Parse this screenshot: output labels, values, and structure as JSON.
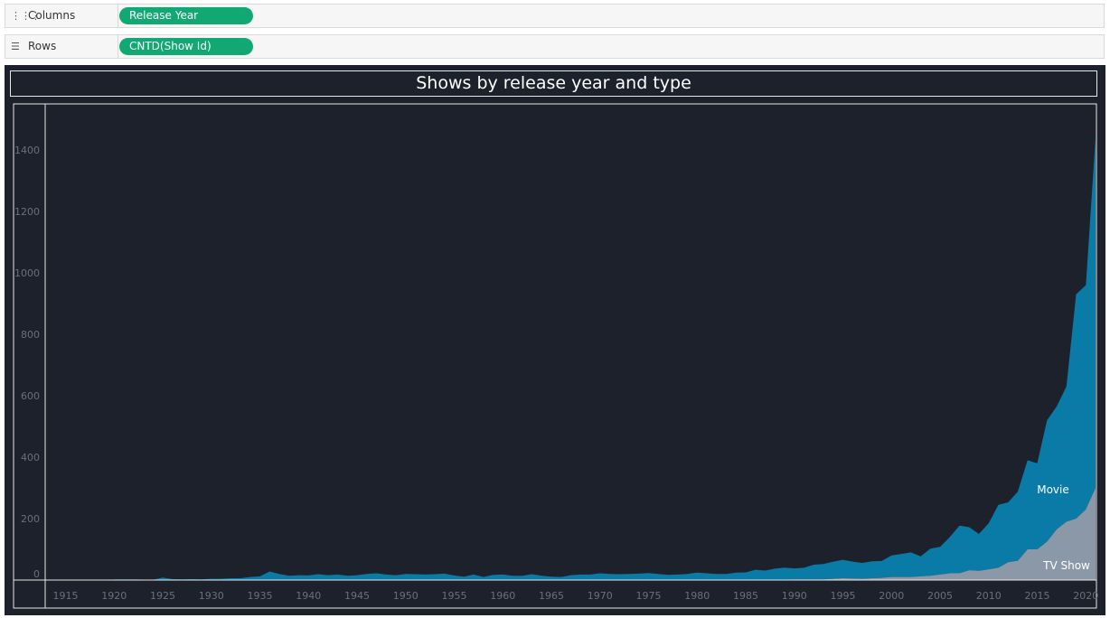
{
  "shelves": {
    "columns": {
      "label": "Columns",
      "pill": "Release Year",
      "icon": "columns-icon"
    },
    "rows": {
      "label": "Rows",
      "pill": "CNTD(Show Id)",
      "icon": "rows-icon"
    }
  },
  "colors": {
    "pill": "#12a874",
    "background": "#1c212b",
    "movie": "#0a7aa6",
    "tv_show": "#8a98a8",
    "tick_text": "#6b7078"
  },
  "chart_data": {
    "type": "area",
    "stacked": true,
    "title": "Shows by release year and type",
    "xlabel": "",
    "ylabel": "",
    "xlim": [
      1913,
      2021
    ],
    "ylim": [
      0,
      1500
    ],
    "x_ticks": [
      1915,
      1920,
      1925,
      1930,
      1935,
      1940,
      1945,
      1950,
      1955,
      1960,
      1965,
      1970,
      1975,
      1980,
      1985,
      1990,
      1995,
      2000,
      2005,
      2010,
      2015,
      2020
    ],
    "y_ticks": [
      0,
      200,
      400,
      600,
      800,
      1000,
      1200,
      1400
    ],
    "grid": false,
    "series": [
      {
        "name": "Movie",
        "points": [
          [
            1920,
            2
          ],
          [
            1922,
            2
          ],
          [
            1924,
            1
          ],
          [
            1925,
            8
          ],
          [
            1926,
            3
          ],
          [
            1927,
            2
          ],
          [
            1928,
            3
          ],
          [
            1929,
            2
          ],
          [
            1930,
            4
          ],
          [
            1931,
            4
          ],
          [
            1932,
            6
          ],
          [
            1933,
            6
          ],
          [
            1934,
            10
          ],
          [
            1935,
            12
          ],
          [
            1936,
            28
          ],
          [
            1937,
            20
          ],
          [
            1938,
            14
          ],
          [
            1939,
            16
          ],
          [
            1940,
            15
          ],
          [
            1941,
            19
          ],
          [
            1942,
            16
          ],
          [
            1943,
            18
          ],
          [
            1944,
            14
          ],
          [
            1945,
            16
          ],
          [
            1946,
            20
          ],
          [
            1947,
            22
          ],
          [
            1948,
            18
          ],
          [
            1949,
            16
          ],
          [
            1950,
            20
          ],
          [
            1951,
            19
          ],
          [
            1952,
            18
          ],
          [
            1953,
            19
          ],
          [
            1954,
            21
          ],
          [
            1955,
            15
          ],
          [
            1956,
            11
          ],
          [
            1957,
            18
          ],
          [
            1958,
            10
          ],
          [
            1959,
            17
          ],
          [
            1960,
            18
          ],
          [
            1961,
            14
          ],
          [
            1962,
            14
          ],
          [
            1963,
            19
          ],
          [
            1964,
            14
          ],
          [
            1965,
            11
          ],
          [
            1966,
            10
          ],
          [
            1967,
            16
          ],
          [
            1968,
            18
          ],
          [
            1969,
            18
          ],
          [
            1970,
            22
          ],
          [
            1971,
            20
          ],
          [
            1972,
            19
          ],
          [
            1973,
            20
          ],
          [
            1974,
            21
          ],
          [
            1975,
            23
          ],
          [
            1976,
            20
          ],
          [
            1977,
            17
          ],
          [
            1978,
            18
          ],
          [
            1979,
            20
          ],
          [
            1980,
            24
          ],
          [
            1981,
            22
          ],
          [
            1982,
            20
          ],
          [
            1983,
            20
          ],
          [
            1984,
            24
          ],
          [
            1985,
            25
          ],
          [
            1986,
            33
          ],
          [
            1987,
            30
          ],
          [
            1988,
            36
          ],
          [
            1989,
            39
          ],
          [
            1990,
            36
          ],
          [
            1991,
            38
          ],
          [
            1992,
            48
          ],
          [
            1993,
            50
          ],
          [
            1994,
            56
          ],
          [
            1995,
            60
          ],
          [
            1996,
            55
          ],
          [
            1997,
            52
          ],
          [
            1998,
            55
          ],
          [
            1999,
            55
          ],
          [
            2000,
            70
          ],
          [
            2001,
            75
          ],
          [
            2002,
            80
          ],
          [
            2003,
            65
          ],
          [
            2004,
            88
          ],
          [
            2005,
            90
          ],
          [
            2006,
            118
          ],
          [
            2007,
            155
          ],
          [
            2008,
            140
          ],
          [
            2009,
            120
          ],
          [
            2010,
            150
          ],
          [
            2011,
            205
          ],
          [
            2012,
            195
          ],
          [
            2013,
            225
          ],
          [
            2014,
            290
          ],
          [
            2015,
            280
          ],
          [
            2016,
            395
          ],
          [
            2017,
            400
          ],
          [
            2018,
            440
          ],
          [
            2019,
            730
          ],
          [
            2020,
            730
          ],
          [
            2021,
            1140
          ]
        ]
      },
      {
        "name": "TV Show",
        "points": [
          [
            1920,
            0
          ],
          [
            1925,
            0
          ],
          [
            1930,
            0
          ],
          [
            1935,
            0
          ],
          [
            1940,
            0
          ],
          [
            1945,
            0
          ],
          [
            1950,
            0
          ],
          [
            1955,
            0
          ],
          [
            1960,
            0
          ],
          [
            1965,
            0
          ],
          [
            1970,
            0
          ],
          [
            1975,
            0
          ],
          [
            1980,
            0
          ],
          [
            1985,
            0
          ],
          [
            1990,
            2
          ],
          [
            1993,
            2
          ],
          [
            1995,
            6
          ],
          [
            1997,
            4
          ],
          [
            1998,
            6
          ],
          [
            1999,
            7
          ],
          [
            2000,
            10
          ],
          [
            2001,
            10
          ],
          [
            2002,
            10
          ],
          [
            2003,
            12
          ],
          [
            2004,
            14
          ],
          [
            2005,
            18
          ],
          [
            2006,
            22
          ],
          [
            2007,
            22
          ],
          [
            2008,
            32
          ],
          [
            2009,
            30
          ],
          [
            2010,
            35
          ],
          [
            2011,
            40
          ],
          [
            2012,
            58
          ],
          [
            2013,
            63
          ],
          [
            2014,
            100
          ],
          [
            2015,
            100
          ],
          [
            2016,
            125
          ],
          [
            2017,
            165
          ],
          [
            2018,
            190
          ],
          [
            2019,
            200
          ],
          [
            2020,
            230
          ],
          [
            2021,
            300
          ]
        ]
      }
    ],
    "series_labels": [
      "Movie",
      "TV Show"
    ]
  }
}
